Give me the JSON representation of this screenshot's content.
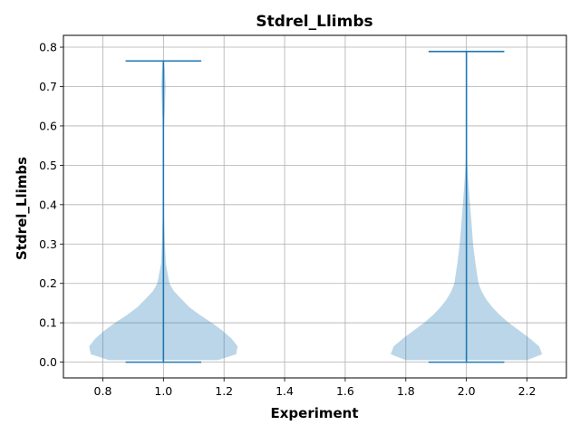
{
  "chart_data": {
    "type": "violin",
    "title": "Stdrel_Llimbs",
    "xlabel": "Experiment",
    "ylabel": "Stdrel_Llimbs",
    "xlim": [
      0.67,
      2.33
    ],
    "ylim": [
      -0.04,
      0.83
    ],
    "xticks": [
      0.8,
      1.0,
      1.2,
      1.4,
      1.6,
      1.8,
      2.0,
      2.2
    ],
    "xtick_labels": [
      "0.8",
      "1.0",
      "1.2",
      "1.4",
      "1.6",
      "1.8",
      "2.0",
      "2.2"
    ],
    "yticks": [
      0.0,
      0.1,
      0.2,
      0.3,
      0.4,
      0.5,
      0.6,
      0.7,
      0.8
    ],
    "ytick_labels": [
      "0.0",
      "0.1",
      "0.2",
      "0.3",
      "0.4",
      "0.5",
      "0.6",
      "0.7",
      "0.8"
    ],
    "grid": true,
    "colors": {
      "body": "#1f77b4",
      "body_opacity": 0.3,
      "lines": "#1f77b4"
    },
    "violins": [
      {
        "position": 1.0,
        "min": 0.0,
        "max": 0.765,
        "density_profile": [
          [
            0.005,
            0.18
          ],
          [
            0.02,
            0.24
          ],
          [
            0.04,
            0.245
          ],
          [
            0.06,
            0.225
          ],
          [
            0.08,
            0.195
          ],
          [
            0.1,
            0.16
          ],
          [
            0.12,
            0.12
          ],
          [
            0.14,
            0.085
          ],
          [
            0.16,
            0.06
          ],
          [
            0.18,
            0.035
          ],
          [
            0.2,
            0.02
          ],
          [
            0.25,
            0.008
          ],
          [
            0.3,
            0.005
          ],
          [
            0.35,
            0.003
          ],
          [
            0.4,
            0.0015
          ],
          [
            0.45,
            0.0008
          ],
          [
            0.5,
            0.0005
          ],
          [
            0.55,
            0.0005
          ],
          [
            0.6,
            0.002
          ],
          [
            0.65,
            0.005
          ],
          [
            0.7,
            0.007
          ],
          [
            0.74,
            0.005
          ],
          [
            0.765,
            0.002
          ]
        ]
      },
      {
        "position": 2.0,
        "min": 0.0,
        "max": 0.789,
        "density_profile": [
          [
            0.005,
            0.2
          ],
          [
            0.02,
            0.25
          ],
          [
            0.04,
            0.24
          ],
          [
            0.06,
            0.21
          ],
          [
            0.08,
            0.175
          ],
          [
            0.1,
            0.14
          ],
          [
            0.12,
            0.11
          ],
          [
            0.14,
            0.085
          ],
          [
            0.16,
            0.065
          ],
          [
            0.18,
            0.05
          ],
          [
            0.2,
            0.04
          ],
          [
            0.25,
            0.03
          ],
          [
            0.3,
            0.022
          ],
          [
            0.35,
            0.017
          ],
          [
            0.4,
            0.012
          ],
          [
            0.45,
            0.007
          ],
          [
            0.5,
            0.003
          ],
          [
            0.55,
            0.001
          ],
          [
            0.6,
            0.0005
          ],
          [
            0.7,
            0.0003
          ],
          [
            0.789,
            0.0003
          ]
        ]
      }
    ]
  }
}
